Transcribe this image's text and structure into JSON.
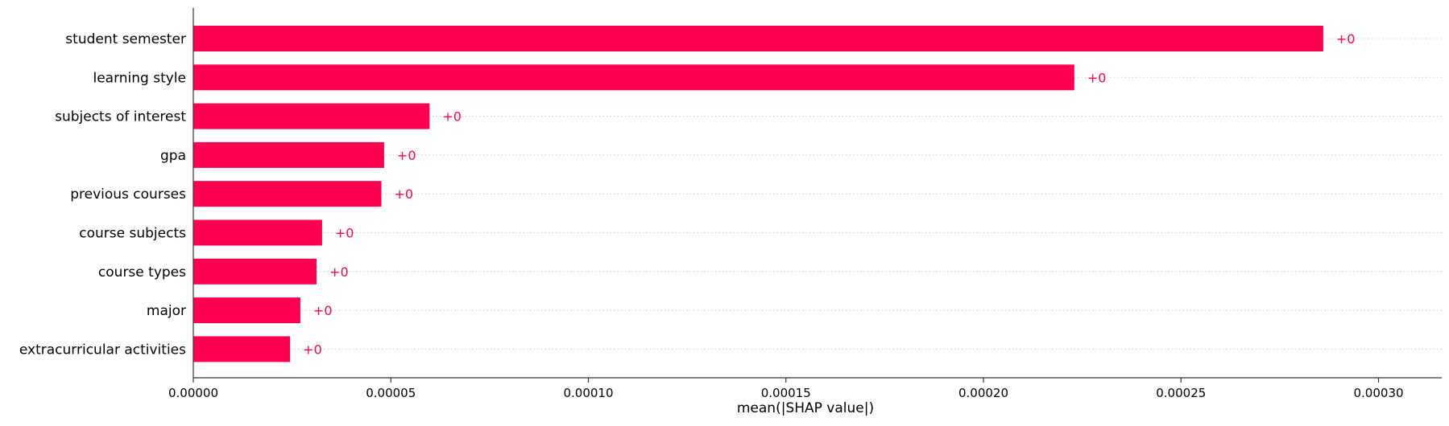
{
  "chart_data": {
    "type": "bar",
    "orientation": "horizontal",
    "categories": [
      "student semester",
      "learning style",
      "subjects of interest",
      "gpa",
      "previous courses",
      "course subjects",
      "course types",
      "major",
      "extracurricular activities"
    ],
    "values": [
      0.000286,
      0.000223,
      5.98e-05,
      4.83e-05,
      4.76e-05,
      3.26e-05,
      3.12e-05,
      2.71e-05,
      2.45e-05
    ],
    "data_labels": [
      "+0",
      "+0",
      "+0",
      "+0",
      "+0",
      "+0",
      "+0",
      "+0",
      "+0"
    ],
    "xlabel": "mean(|SHAP value|)",
    "ylabel": "",
    "xlim": [
      0,
      0.000316
    ],
    "xticks": [
      0,
      5e-05,
      0.0001,
      0.00015,
      0.0002,
      0.00025,
      0.0003
    ],
    "xtick_labels": [
      "0.00000",
      "0.00005",
      "0.00010",
      "0.00015",
      "0.00020",
      "0.00025",
      "0.00030"
    ],
    "grid": "horizontal dotted lines per bar",
    "legend": "none",
    "colors": {
      "bar": "#ff0051",
      "data_label": "#ff0051",
      "grid": "#cccccc",
      "axis": "#333333"
    }
  }
}
